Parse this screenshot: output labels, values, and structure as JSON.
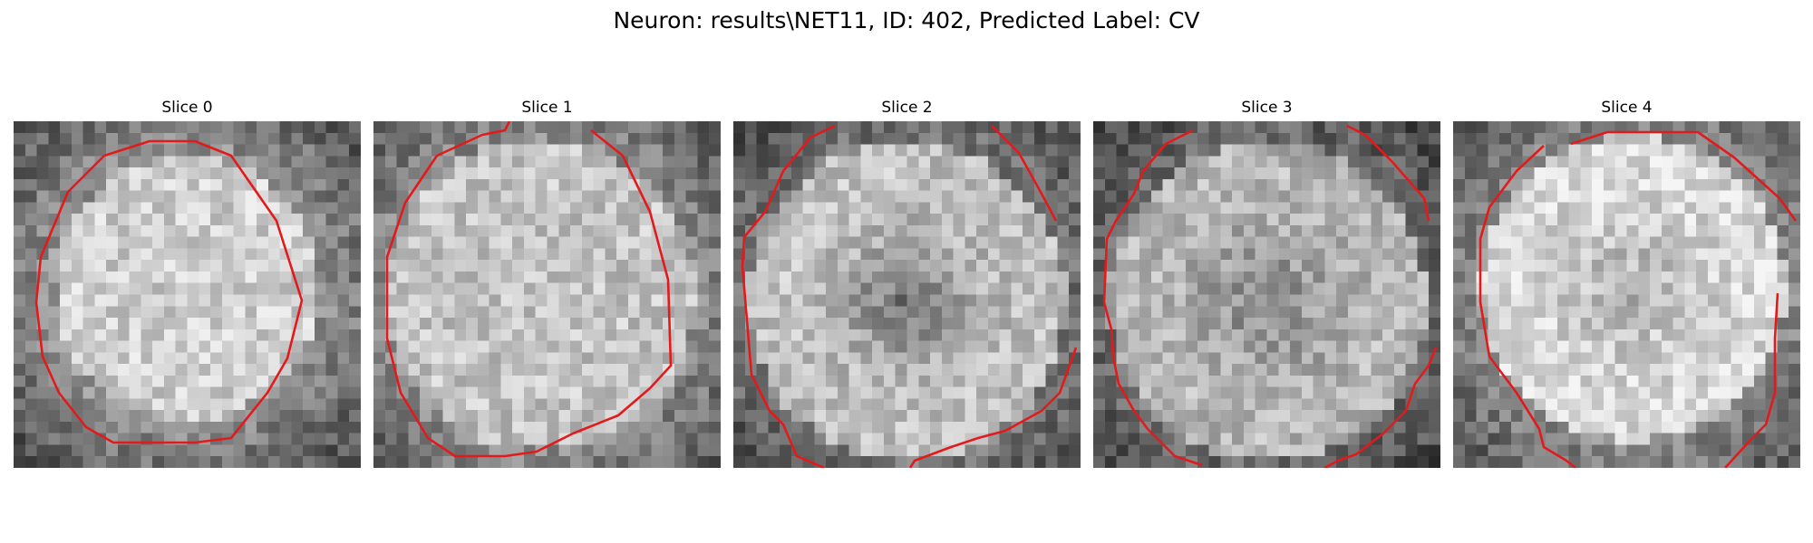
{
  "figure": {
    "title": "Neuron: results\\NET11, ID: 402, Predicted Label: CV",
    "contour_color": "#e31a1c",
    "colormap": "gray",
    "slices": [
      {
        "title": "Slice 0"
      },
      {
        "title": "Slice 1"
      },
      {
        "title": "Slice 2"
      },
      {
        "title": "Slice 3"
      },
      {
        "title": "Slice 4"
      }
    ]
  }
}
